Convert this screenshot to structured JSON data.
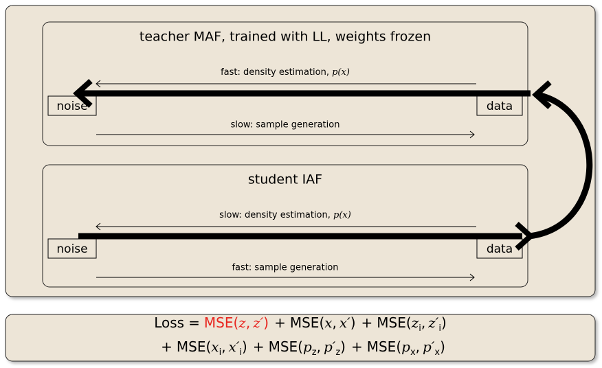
{
  "teacher": {
    "title": "teacher MAF, trained with LL, weights frozen",
    "top_arrow": {
      "label": "fast:  density estimation,",
      "math": "p(x)"
    },
    "left": "noise",
    "right": "data",
    "bottom_arrow": {
      "label": "slow:  sample generation"
    }
  },
  "student": {
    "title": "student IAF",
    "top_arrow": {
      "label": "slow:  density estimation,",
      "math": "p(x)"
    },
    "left": "noise",
    "right": "data",
    "bottom_arrow": {
      "label": "fast:  sample generation"
    }
  },
  "loss": {
    "lhs": "Loss",
    "eq": "=",
    "plus": "+",
    "open": "(",
    "comma": ",",
    "close": ")",
    "terms": [
      {
        "fn": "MSE",
        "a": "z",
        "b": "z′",
        "color": "#e8251f"
      },
      {
        "fn": "MSE",
        "a": "x",
        "b": "x′"
      },
      {
        "fn": "MSE",
        "a": "z",
        "b": "z′",
        "sub": "i"
      },
      {
        "fn": "MSE",
        "a": "x",
        "b": "x′",
        "sub": "i"
      },
      {
        "fn": "MSE",
        "a": "p",
        "b": "p′",
        "sub": "z"
      },
      {
        "fn": "MSE",
        "a": "p",
        "b": "p′",
        "sub": "x"
      }
    ]
  }
}
